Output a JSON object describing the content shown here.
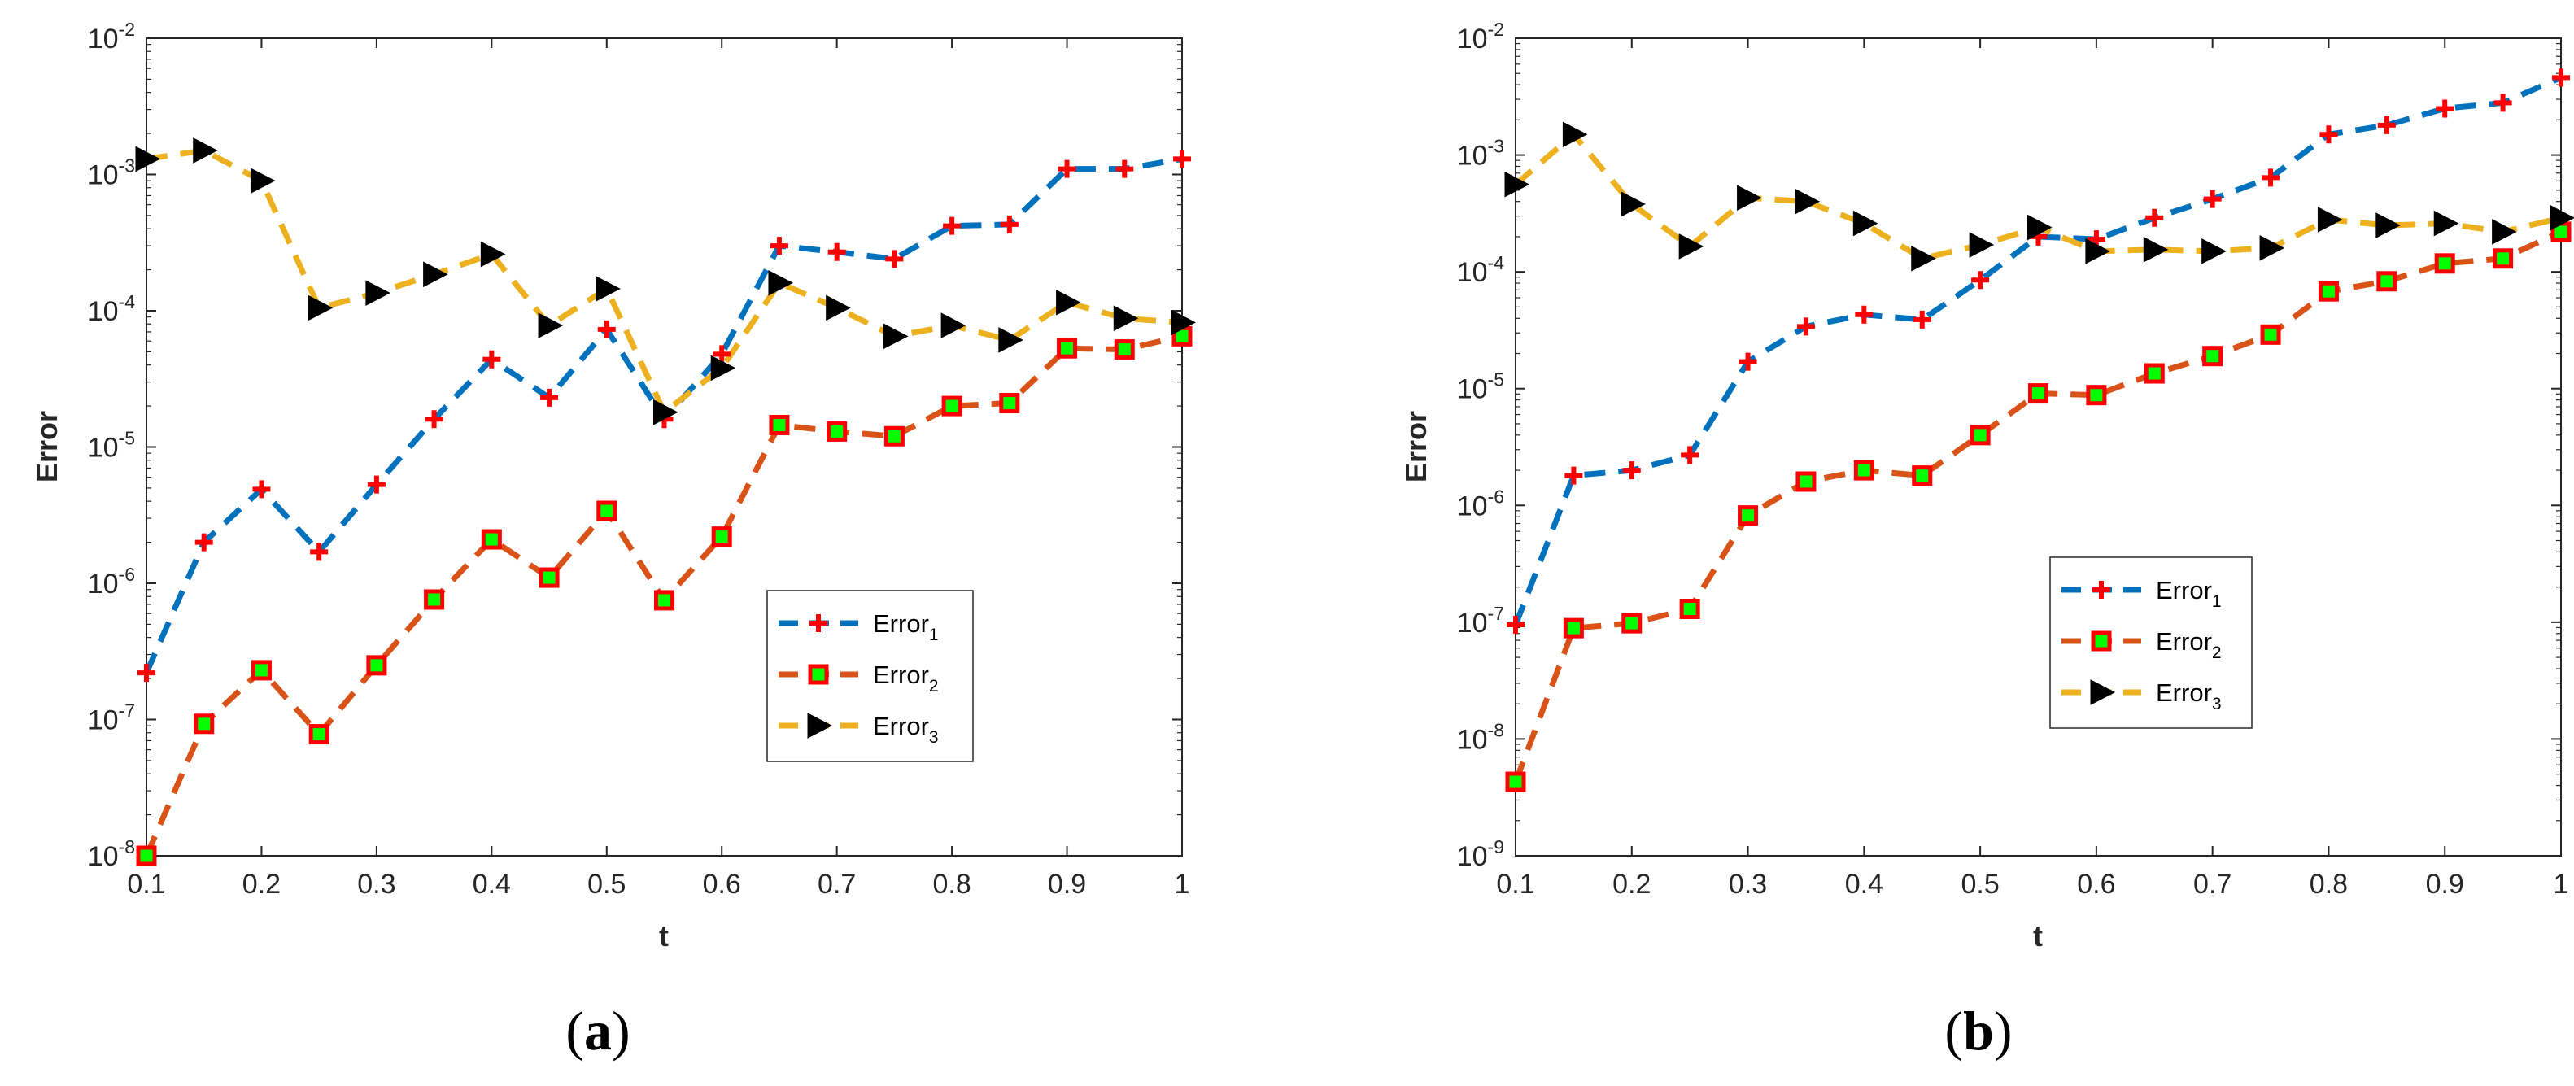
{
  "chart_data": [
    {
      "type": "line",
      "panel_label": "a",
      "xlabel": "t",
      "ylabel": "Error",
      "yscale": "log",
      "xlim": [
        0.1,
        1
      ],
      "ylim_exp": [
        -8,
        -2
      ],
      "xticks": [
        "0.1",
        "0.2",
        "0.3",
        "0.4",
        "0.5",
        "0.6",
        "0.7",
        "0.8",
        "0.9",
        "1"
      ],
      "ytick_base": "10",
      "ytick_exps": [
        "-8",
        "-7",
        "-6",
        "-5",
        "-4",
        "-3",
        "-2"
      ],
      "legend_position": "lower-right",
      "x": [
        0.1,
        0.15,
        0.2,
        0.25,
        0.3,
        0.35,
        0.4,
        0.45,
        0.5,
        0.55,
        0.6,
        0.65,
        0.7,
        0.75,
        0.8,
        0.85,
        0.9,
        0.95,
        1.0
      ],
      "series": [
        {
          "name": "Error",
          "subscript": "1",
          "color": "#0072BD",
          "marker": "plus",
          "marker_color": "#FF0000",
          "values": [
            2.2e-07,
            2e-06,
            4.9e-06,
            1.7e-06,
            5.3e-06,
            1.6e-05,
            4.4e-05,
            2.3e-05,
            7.3e-05,
            1.6e-05,
            4.8e-05,
            0.0003,
            0.00027,
            0.00024,
            0.00042,
            0.00043,
            0.0011,
            0.0011,
            0.0013
          ]
        },
        {
          "name": "Error",
          "subscript": "2",
          "color": "#D95319",
          "marker": "square",
          "marker_color": "#FF0000",
          "marker_face": "#00FF00",
          "values": [
            1e-08,
            9.3e-08,
            2.3e-07,
            7.8e-08,
            2.5e-07,
            7.6e-07,
            2.1e-06,
            1.1e-06,
            3.4e-06,
            7.5e-07,
            2.2e-06,
            1.45e-05,
            1.3e-05,
            1.2e-05,
            2e-05,
            2.1e-05,
            5.3e-05,
            5.2e-05,
            6.5e-05
          ]
        },
        {
          "name": "Error",
          "subscript": "3",
          "color": "#EDB120",
          "marker": "triangle-right",
          "marker_color": "#000000",
          "values": [
            0.0013,
            0.0015,
            0.0009,
            0.000105,
            0.000135,
            0.000185,
            0.00026,
            7.8e-05,
            0.000145,
            1.8e-05,
            3.8e-05,
            0.00016,
            0.000105,
            6.5e-05,
            7.8e-05,
            6.1e-05,
            0.000115,
            8.8e-05,
            8.2e-05
          ]
        }
      ]
    },
    {
      "type": "line",
      "panel_label": "b",
      "xlabel": "t",
      "ylabel": "Error",
      "yscale": "log",
      "xlim": [
        0.1,
        1
      ],
      "ylim_exp": [
        -9,
        -2
      ],
      "xticks": [
        "0.1",
        "0.2",
        "0.3",
        "0.4",
        "0.5",
        "0.6",
        "0.7",
        "0.8",
        "0.9",
        "1"
      ],
      "ytick_base": "10",
      "ytick_exps": [
        "-9",
        "-8",
        "-7",
        "-6",
        "-5",
        "-4",
        "-3",
        "-2"
      ],
      "legend_position": "lower-right",
      "x": [
        0.1,
        0.15,
        0.2,
        0.25,
        0.3,
        0.35,
        0.4,
        0.45,
        0.5,
        0.55,
        0.6,
        0.65,
        0.7,
        0.75,
        0.8,
        0.85,
        0.9,
        0.95,
        1.0
      ],
      "series": [
        {
          "name": "Error",
          "subscript": "1",
          "color": "#0072BD",
          "marker": "plus",
          "marker_color": "#FF0000",
          "values": [
            9.5e-08,
            1.8e-06,
            2e-06,
            2.7e-06,
            1.7e-05,
            3.4e-05,
            4.3e-05,
            3.9e-05,
            8.5e-05,
            0.0002,
            0.00019,
            0.00029,
            0.00042,
            0.00064,
            0.0015,
            0.0018,
            0.0025,
            0.0028,
            0.0046
          ]
        },
        {
          "name": "Error",
          "subscript": "2",
          "color": "#D95319",
          "marker": "square",
          "marker_color": "#FF0000",
          "marker_face": "#00FF00",
          "values": [
            4.3e-09,
            8.9e-08,
            9.8e-08,
            1.3e-07,
            8.2e-07,
            1.6e-06,
            2e-06,
            1.8e-06,
            4e-06,
            9.1e-06,
            8.8e-06,
            1.35e-05,
            1.9e-05,
            2.9e-05,
            6.8e-05,
            8.3e-05,
            0.000118,
            0.00013,
            0.00022
          ]
        },
        {
          "name": "Error",
          "subscript": "3",
          "color": "#EDB120",
          "marker": "triangle-right",
          "marker_color": "#000000",
          "values": [
            0.00056,
            0.0015,
            0.00038,
            0.000165,
            0.00043,
            0.0004,
            0.00026,
            0.00013,
            0.00017,
            0.00024,
            0.00015,
            0.000155,
            0.00015,
            0.00016,
            0.00028,
            0.00025,
            0.00026,
            0.00022,
            0.00029
          ]
        }
      ]
    }
  ]
}
